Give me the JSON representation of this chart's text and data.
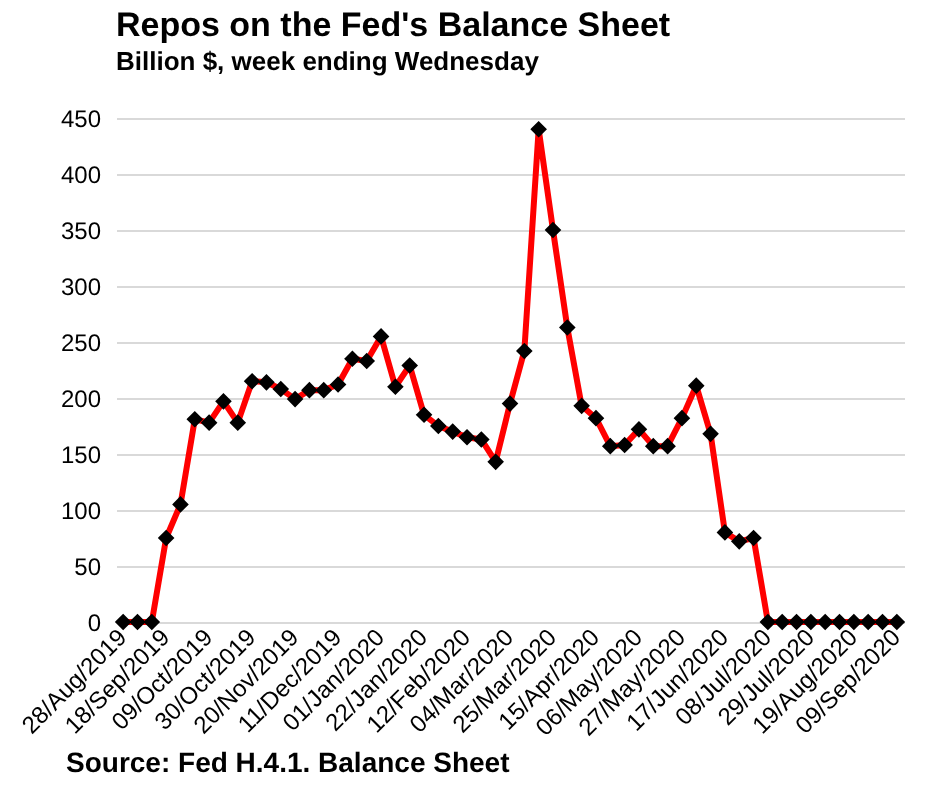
{
  "chart_data": {
    "type": "line",
    "title": "Repos on the Fed's Balance Sheet",
    "subtitle": "Billion $, week ending Wednesday",
    "categories": [
      "28/Aug/2019",
      null,
      null,
      "18/Sep/2019",
      null,
      null,
      "09/Oct/2019",
      null,
      null,
      "30/Oct/2019",
      null,
      null,
      "20/Nov/2019",
      null,
      null,
      "11/Dec/2019",
      null,
      null,
      "01/Jan/2020",
      null,
      null,
      "22/Jan/2020",
      null,
      null,
      "12/Feb/2020",
      null,
      null,
      "04/Mar/2020",
      null,
      null,
      "25/Mar/2020",
      null,
      null,
      "15/Apr/2020",
      null,
      null,
      "06/May/2020",
      null,
      null,
      "27/May/2020",
      null,
      null,
      "17/Jun/2020",
      null,
      null,
      "08/Jul/2020",
      null,
      null,
      "29/Jul/2020",
      null,
      null,
      "19/Aug/2020",
      null,
      null,
      "09/Sep/2020"
    ],
    "series": [
      {
        "color": "#ff0000",
        "values": [
          0,
          0,
          0,
          75,
          105,
          181,
          178,
          197,
          178,
          215,
          214,
          208,
          199,
          207,
          207,
          212,
          235,
          233,
          255,
          210,
          229,
          185,
          175,
          170,
          165,
          163,
          143,
          195,
          242,
          440,
          350,
          263,
          193,
          182,
          157,
          158,
          172,
          157,
          157,
          182,
          211,
          168,
          80,
          72,
          75,
          0,
          0,
          0,
          0,
          0,
          0,
          0,
          0,
          0,
          0
        ]
      }
    ],
    "ylim": [
      0,
      450
    ],
    "yticks": [
      0,
      50,
      100,
      150,
      200,
      250,
      300,
      350,
      400,
      450
    ],
    "grid": "y",
    "marker": "diamond",
    "line_style": "solid",
    "annotations": [
      "Source: Fed H.4.1. Balance Sheet"
    ]
  }
}
